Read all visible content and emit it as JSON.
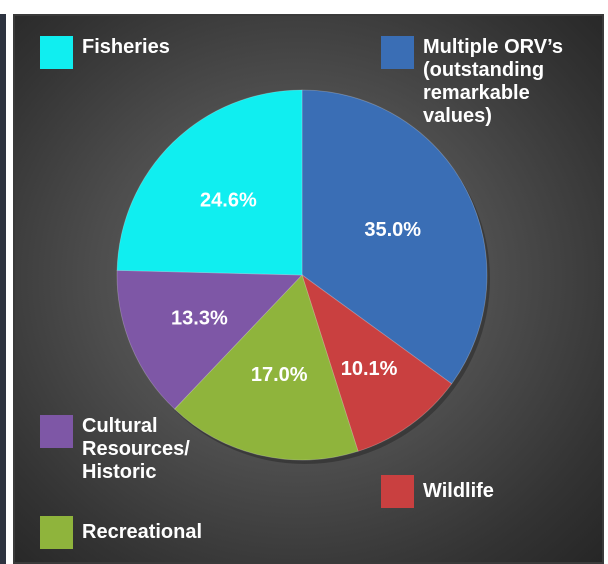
{
  "header": {
    "title_fragment": ""
  },
  "chart_data": {
    "type": "pie",
    "title": "",
    "slices": [
      {
        "label": "Multiple ORV’s\n(outstanding\nremarkable\nvalues)",
        "value": 35.0,
        "display": "35.0%",
        "color": "#3a6eb5"
      },
      {
        "label": "Wildlife",
        "value": 10.1,
        "display": "10.1%",
        "color": "#c94040"
      },
      {
        "label": "Recreational",
        "value": 17.0,
        "display": "17.0%",
        "color": "#8fb43c"
      },
      {
        "label": "Cultural\nResources/\nHistoric",
        "value": 13.3,
        "display": "13.3%",
        "color": "#7e57a6"
      },
      {
        "label": "Fisheries",
        "value": 24.6,
        "display": "24.6%",
        "color": "#10eef0"
      }
    ],
    "start_angle": "12 o'clock",
    "direction": "clockwise"
  }
}
